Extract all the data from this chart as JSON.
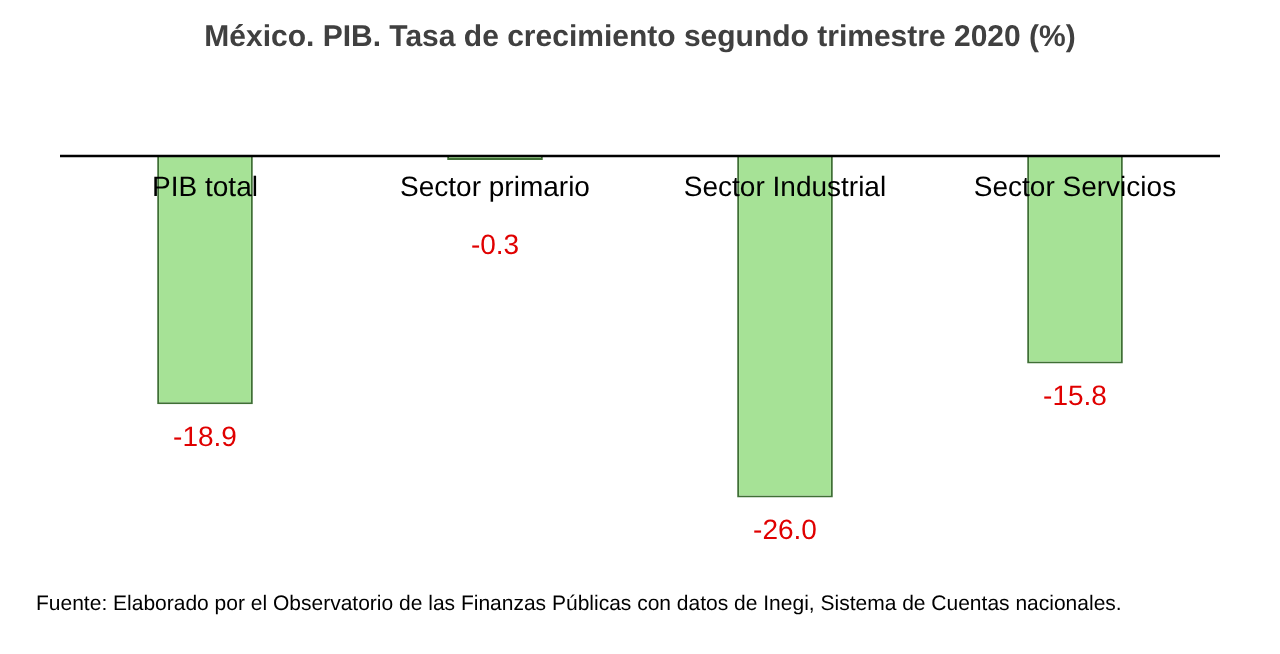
{
  "chart_data": {
    "type": "bar",
    "title": "México. PIB. Tasa de crecimiento segundo trimestre 2020 (%)",
    "categories": [
      "PIB total",
      "Sector primario",
      "Sector Industrial",
      "Sector Servicios"
    ],
    "values": [
      -18.9,
      -0.3,
      -26.0,
      -15.8
    ],
    "color": "#a6e296",
    "value_labels": [
      "-18.9",
      "-0.3",
      "-26.0",
      "-15.8"
    ],
    "annotations": [
      "Fuente: Elaborado por el Observatorio de las Finanzas Públicas con datos de Inegi, Sistema de Cuentas nacionales."
    ]
  }
}
